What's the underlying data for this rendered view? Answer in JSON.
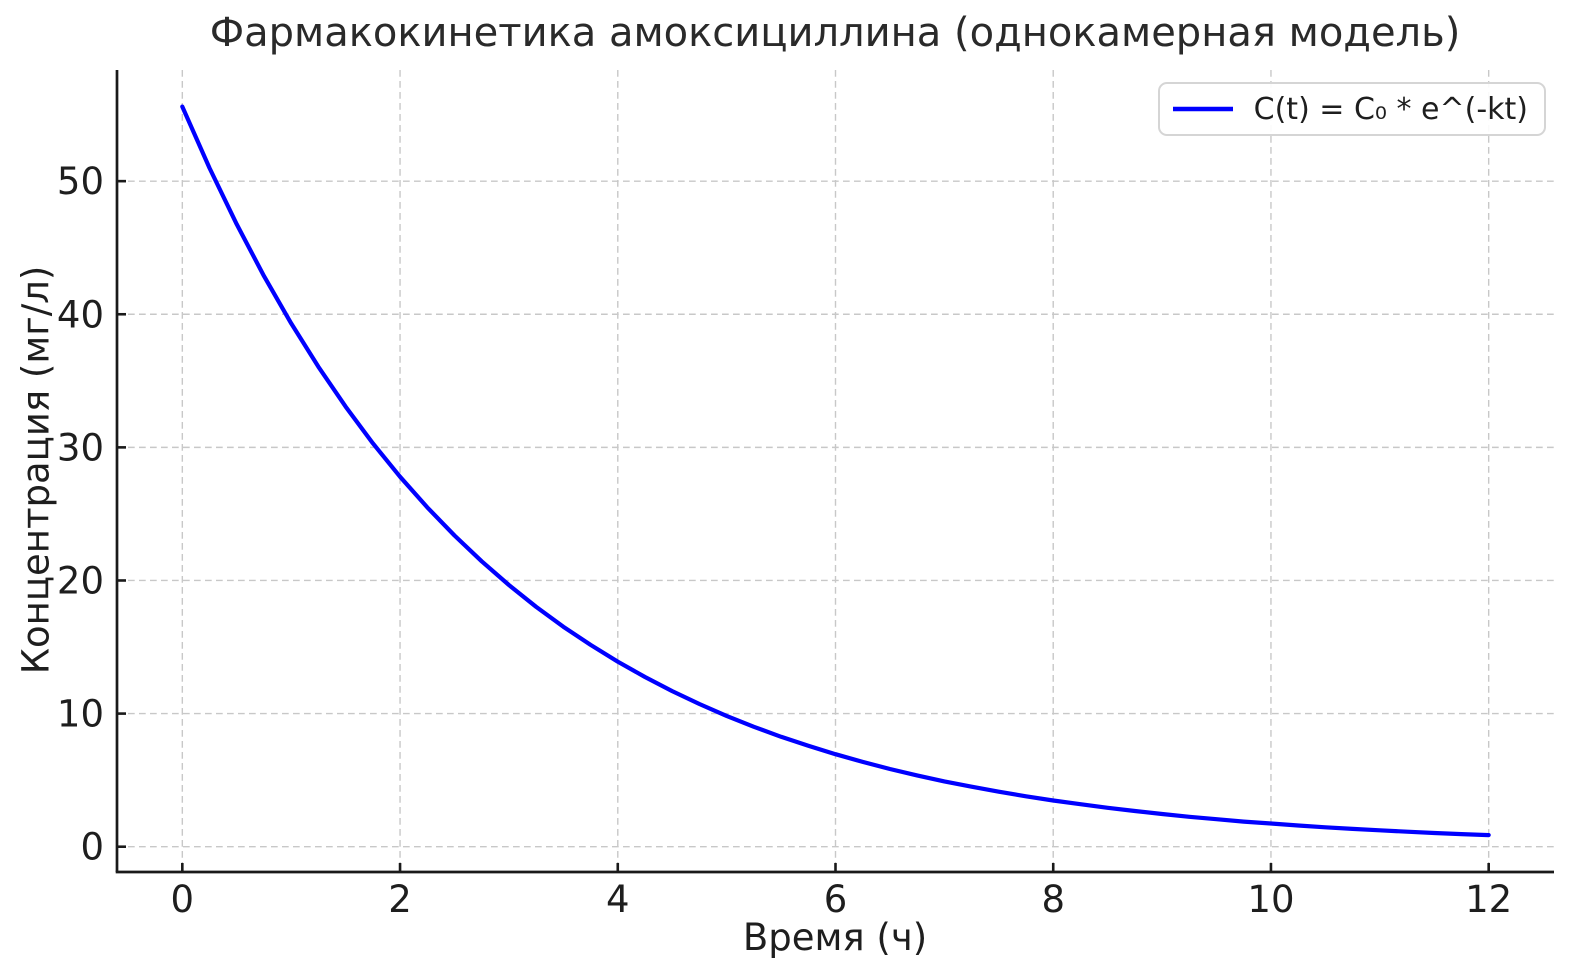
{
  "figure": {
    "background": "#ffffff"
  },
  "colors": {
    "curve": "#0000ff",
    "grid": "#c8c8c8",
    "spine": "#1a1a1a",
    "tick": "#1a1a1a",
    "text": "#1e1e1e",
    "legend_border": "#d5d5d5"
  },
  "legend": {
    "label": "C(t) = C₀ * e^(-kt)",
    "position": "upper right"
  },
  "chart_data": {
    "type": "line",
    "title": "Фармакокинетика амоксициллина (однокамерная модель)",
    "xlabel": "Время (ч)",
    "ylabel": "Концентрация (мг/л)",
    "xlim": [
      -0.6,
      12.6
    ],
    "ylim": [
      -1.9,
      58.35
    ],
    "xticks": [
      0,
      2,
      4,
      6,
      8,
      10,
      12
    ],
    "yticks": [
      0,
      10,
      20,
      30,
      40,
      50
    ],
    "grid": true,
    "grid_linestyle": "dashed",
    "legend_position": "upper right",
    "series": [
      {
        "name": "C(t) = C₀ * e^(-kt)",
        "color": "#0000ff",
        "x": [
          0,
          0.25,
          0.5,
          0.75,
          1,
          1.25,
          1.5,
          1.75,
          2,
          2.25,
          2.5,
          2.75,
          3,
          3.25,
          3.5,
          3.75,
          4,
          4.25,
          4.5,
          4.75,
          5,
          5.25,
          5.5,
          5.75,
          6,
          6.25,
          6.5,
          6.75,
          7,
          7.25,
          7.5,
          7.75,
          8,
          8.25,
          8.5,
          8.75,
          9,
          9.25,
          9.5,
          9.75,
          10,
          10.25,
          10.5,
          10.75,
          11,
          11.25,
          11.5,
          11.75,
          12
        ],
        "y": [
          55.6,
          50.99,
          46.75,
          42.87,
          39.31,
          36.05,
          33.06,
          30.31,
          27.8,
          25.49,
          23.38,
          21.44,
          19.66,
          18.02,
          16.53,
          15.16,
          13.9,
          12.75,
          11.69,
          10.72,
          9.83,
          9.01,
          8.26,
          7.58,
          6.95,
          6.37,
          5.84,
          5.36,
          4.91,
          4.51,
          4.13,
          3.79,
          3.47,
          3.19,
          2.92,
          2.68,
          2.46,
          2.25,
          2.07,
          1.89,
          1.74,
          1.59,
          1.46,
          1.34,
          1.23,
          1.13,
          1.03,
          0.95,
          0.87
        ]
      }
    ]
  }
}
